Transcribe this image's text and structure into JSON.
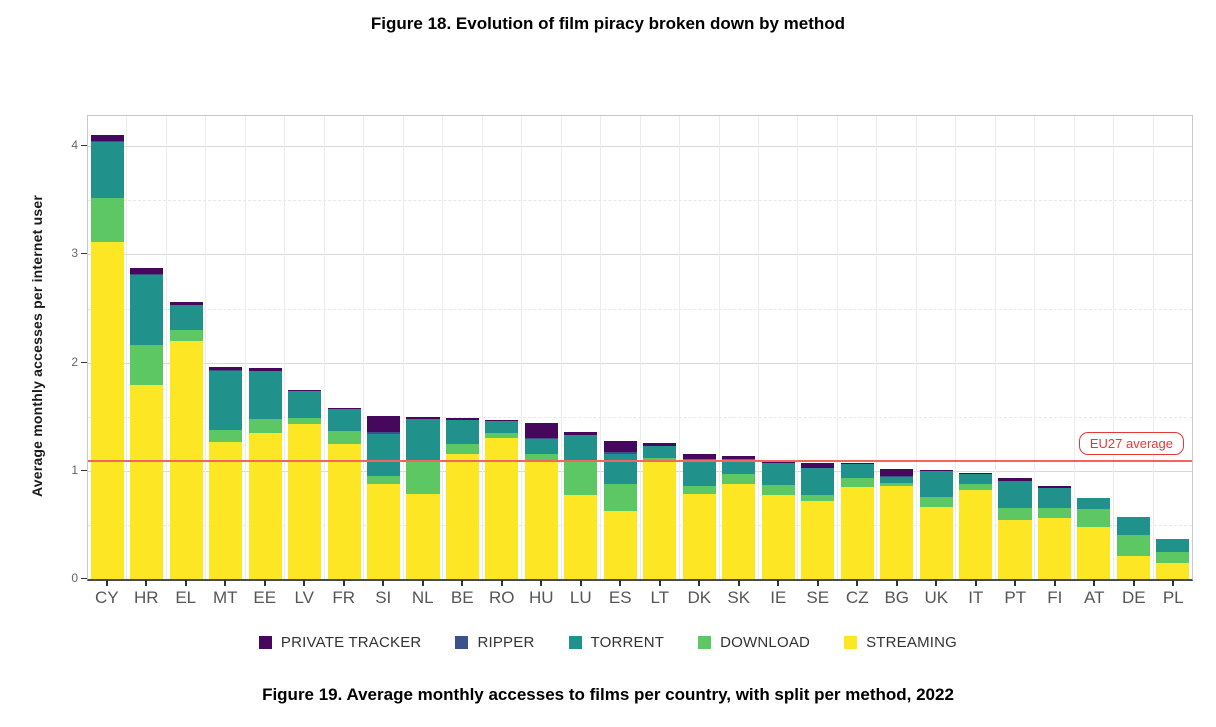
{
  "page": {
    "title_top": "Figure 18. Evolution of film piracy broken down by method",
    "caption_bottom": "Figure 19. Average monthly accesses to films per country, with split per method, 2022"
  },
  "chart_data": {
    "type": "bar",
    "stacked": true,
    "ylabel": "Average monthly accesses per internet user",
    "xlabel": "",
    "ylim": [
      0,
      4.28
    ],
    "y_ticks": [
      0,
      1,
      2,
      3,
      4
    ],
    "y_minor_grid_step": 0.5,
    "grid": true,
    "legend_position": "bottom",
    "categories": [
      "CY",
      "HR",
      "EL",
      "MT",
      "EE",
      "LV",
      "FR",
      "SI",
      "NL",
      "BE",
      "RO",
      "HU",
      "LU",
      "ES",
      "LT",
      "DK",
      "SK",
      "IE",
      "SE",
      "CZ",
      "BG",
      "UK",
      "IT",
      "PT",
      "FI",
      "AT",
      "DE",
      "PL"
    ],
    "series": [
      {
        "name": "PRIVATE TRACKER",
        "color": "#46085C",
        "values": [
          0.05,
          0.06,
          0.03,
          0.03,
          0.03,
          0.01,
          0.01,
          0.15,
          0.02,
          0.02,
          0.01,
          0.14,
          0.03,
          0.11,
          0.03,
          0.05,
          0.03,
          0.01,
          0.04,
          0.01,
          0.07,
          0.01,
          0.01,
          0.02,
          0.02,
          0,
          0,
          0
        ]
      },
      {
        "name": "RIPPER",
        "color": "#3B528B",
        "values": [
          0.01,
          0.01,
          0,
          0.01,
          0,
          0,
          0,
          0.02,
          0,
          0,
          0,
          0.01,
          0,
          0.01,
          0,
          0,
          0,
          0,
          0,
          0,
          0.01,
          0,
          0,
          0,
          0,
          0,
          0,
          0
        ]
      },
      {
        "name": "TORRENT",
        "color": "#21918C",
        "values": [
          0.52,
          0.65,
          0.23,
          0.54,
          0.44,
          0.25,
          0.2,
          0.39,
          0.4,
          0.22,
          0.11,
          0.13,
          0.25,
          0.28,
          0.11,
          0.25,
          0.14,
          0.2,
          0.25,
          0.13,
          0.05,
          0.24,
          0.09,
          0.25,
          0.18,
          0.1,
          0.16,
          0.12
        ]
      },
      {
        "name": "DOWNLOAD",
        "color": "#5DC863",
        "values": [
          0.4,
          0.37,
          0.1,
          0.11,
          0.13,
          0.06,
          0.12,
          0.07,
          0.29,
          0.09,
          0.05,
          0.06,
          0.3,
          0.25,
          0.03,
          0.07,
          0.09,
          0.09,
          0.06,
          0.08,
          0.03,
          0.09,
          0.06,
          0.11,
          0.1,
          0.17,
          0.2,
          0.1
        ]
      },
      {
        "name": "STREAMING",
        "color": "#FDE725",
        "values": [
          3.12,
          1.79,
          2.2,
          1.27,
          1.35,
          1.43,
          1.25,
          0.88,
          0.79,
          1.16,
          1.3,
          1.1,
          0.78,
          0.63,
          1.09,
          0.79,
          0.88,
          0.78,
          0.72,
          0.85,
          0.86,
          0.67,
          0.82,
          0.55,
          0.56,
          0.48,
          0.21,
          0.15
        ]
      }
    ],
    "totals": [
      4.1,
      2.88,
      2.56,
      1.96,
      1.95,
      1.75,
      1.58,
      1.51,
      1.5,
      1.49,
      1.47,
      1.44,
      1.36,
      1.28,
      1.26,
      1.16,
      1.14,
      1.08,
      1.07,
      1.07,
      1.02,
      1.01,
      0.98,
      0.93,
      0.86,
      0.75,
      0.57,
      0.37
    ],
    "stack_order_top_to_bottom": [
      "PRIVATE TRACKER",
      "RIPPER",
      "TORRENT",
      "DOWNLOAD",
      "STREAMING"
    ],
    "annotation": {
      "label": "EU27 average",
      "value": 1.1,
      "line_color": "#F4655F",
      "box_color": "#E53935"
    }
  },
  "colors": {
    "grid_major": "#d8d8d8",
    "grid_minor": "#e7e7e7",
    "axis_line": "#4a4a55",
    "tick_text": "#555555"
  }
}
